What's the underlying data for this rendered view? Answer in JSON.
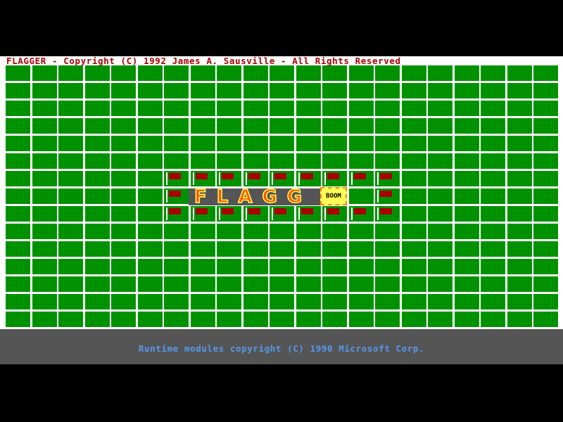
{
  "title": "FLAGGER - Copyright (C) 1992 James A. Sausville - All Rights Reserved",
  "board": {
    "rows": 15,
    "cols": 21,
    "flags": [
      [
        6,
        6
      ],
      [
        6,
        7
      ],
      [
        6,
        8
      ],
      [
        6,
        9
      ],
      [
        6,
        10
      ],
      [
        6,
        11
      ],
      [
        6,
        12
      ],
      [
        6,
        13
      ],
      [
        6,
        14
      ],
      [
        7,
        6
      ],
      [
        7,
        14
      ],
      [
        8,
        6
      ],
      [
        8,
        7
      ],
      [
        8,
        8
      ],
      [
        8,
        9
      ],
      [
        8,
        10
      ],
      [
        8,
        11
      ],
      [
        8,
        12
      ],
      [
        8,
        13
      ],
      [
        8,
        14
      ]
    ],
    "logo_row": 7,
    "logo_cols": [
      7,
      12
    ]
  },
  "logo": {
    "text": "FLAGG",
    "boom": "BOOM"
  },
  "footer": {
    "text": "Runtime modules copyright (C) 1990 Microsoft Corp."
  },
  "colors": {
    "title": "#aa0000",
    "grass": "#008800",
    "flag": "#aa0000",
    "footer_text": "#5599ee",
    "footer_bg": "#555555"
  }
}
